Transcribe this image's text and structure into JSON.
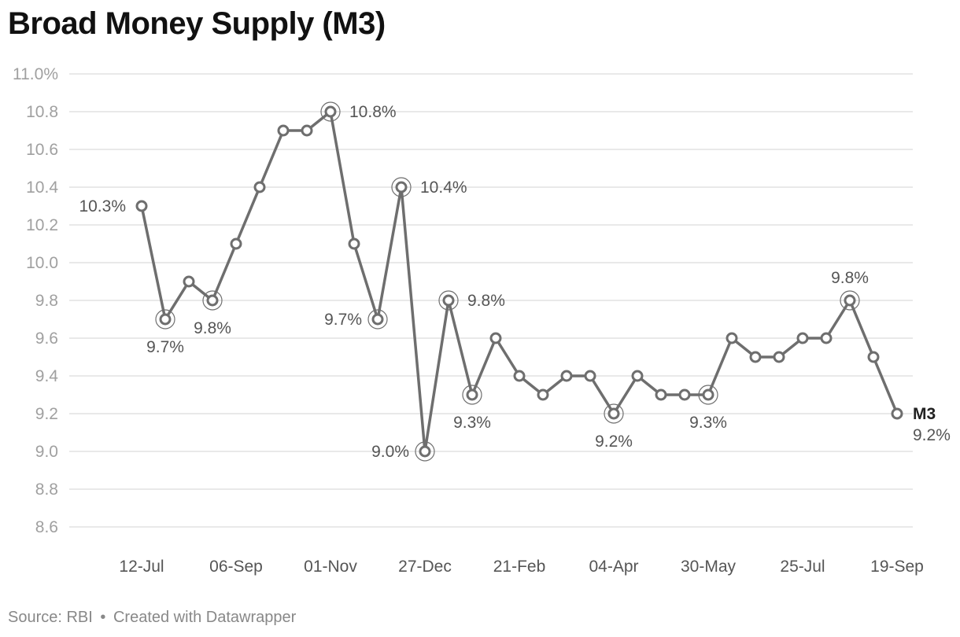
{
  "title": "Broad Money Supply (M3)",
  "footer": {
    "source": "Source: RBI",
    "separator": "•",
    "credit": "Created with Datawrapper"
  },
  "colors": {
    "line": "#6e6e6e",
    "grid": "#e2e2e2",
    "tick_text": "#a0a0a0",
    "label_text": "#555555",
    "series_label": "#222222"
  },
  "chart_data": {
    "type": "line",
    "title": "Broad Money Supply (M3)",
    "xlabel": "",
    "ylabel": "",
    "ylim": [
      8.6,
      11.0
    ],
    "y_ticks": [
      {
        "value": 11.0,
        "label": "11.0%"
      },
      {
        "value": 10.8,
        "label": "10.8"
      },
      {
        "value": 10.6,
        "label": "10.6"
      },
      {
        "value": 10.4,
        "label": "10.4"
      },
      {
        "value": 10.2,
        "label": "10.2"
      },
      {
        "value": 10.0,
        "label": "10.0"
      },
      {
        "value": 9.8,
        "label": "9.8"
      },
      {
        "value": 9.6,
        "label": "9.6"
      },
      {
        "value": 9.4,
        "label": "9.4"
      },
      {
        "value": 9.2,
        "label": "9.2"
      },
      {
        "value": 9.0,
        "label": "9.0"
      },
      {
        "value": 8.8,
        "label": "8.8"
      },
      {
        "value": 8.6,
        "label": "8.6"
      }
    ],
    "x_ticks": [
      {
        "index": 0,
        "label": "12-Jul"
      },
      {
        "index": 4,
        "label": "06-Sep"
      },
      {
        "index": 8,
        "label": "01-Nov"
      },
      {
        "index": 12,
        "label": "27-Dec"
      },
      {
        "index": 16,
        "label": "21-Feb"
      },
      {
        "index": 20,
        "label": "04-Apr"
      },
      {
        "index": 24,
        "label": "30-May"
      },
      {
        "index": 28,
        "label": "25-Jul"
      },
      {
        "index": 32,
        "label": "19-Sep"
      }
    ],
    "grid": true,
    "series": [
      {
        "name": "M3",
        "values": [
          10.3,
          9.7,
          9.9,
          9.8,
          10.1,
          10.4,
          10.7,
          10.7,
          10.8,
          10.1,
          9.7,
          10.4,
          9.0,
          9.8,
          9.3,
          9.6,
          9.4,
          9.3,
          9.4,
          9.4,
          9.2,
          9.4,
          9.3,
          9.3,
          9.3,
          9.6,
          9.5,
          9.5,
          9.6,
          9.6,
          9.8,
          9.5,
          9.2
        ]
      }
    ],
    "annotations": [
      {
        "index": 0,
        "text": "10.3%",
        "pos": "left",
        "ring": false
      },
      {
        "index": 1,
        "text": "9.7%",
        "pos": "below",
        "ring": true
      },
      {
        "index": 3,
        "text": "9.8%",
        "pos": "below",
        "ring": true
      },
      {
        "index": 8,
        "text": "10.8%",
        "pos": "right",
        "ring": true
      },
      {
        "index": 10,
        "text": "9.7%",
        "pos": "left",
        "ring": true
      },
      {
        "index": 11,
        "text": "10.4%",
        "pos": "right",
        "ring": true
      },
      {
        "index": 12,
        "text": "9.0%",
        "pos": "left",
        "ring": true
      },
      {
        "index": 13,
        "text": "9.8%",
        "pos": "right",
        "ring": true
      },
      {
        "index": 14,
        "text": "9.3%",
        "pos": "below",
        "ring": true
      },
      {
        "index": 20,
        "text": "9.2%",
        "pos": "below",
        "ring": true
      },
      {
        "index": 24,
        "text": "9.3%",
        "pos": "below",
        "ring": true
      },
      {
        "index": 30,
        "text": "9.8%",
        "pos": "above",
        "ring": true
      },
      {
        "index": 32,
        "text": "9.2%",
        "pos": "end",
        "ring": false
      }
    ],
    "series_label": {
      "text": "M3",
      "index": 32
    }
  }
}
